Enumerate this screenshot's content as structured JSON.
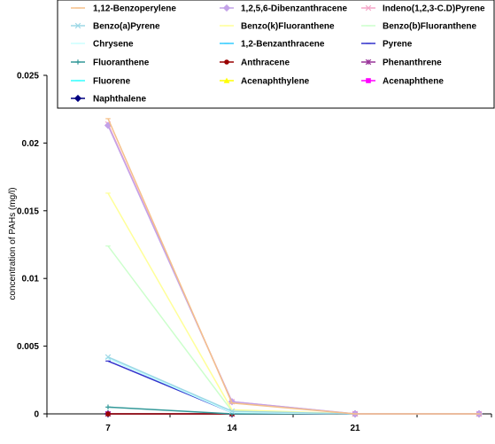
{
  "chart_data": {
    "type": "line",
    "title": "",
    "xlabel": "",
    "ylabel": "concentration of PAHs (mg/l)",
    "x": [
      "7",
      "14",
      "21",
      ""
    ],
    "ylim": [
      0,
      0.025
    ],
    "yticks": [
      "0",
      "0.005",
      "0.01",
      "0.015",
      "0.02",
      "0.025"
    ],
    "grid": false,
    "legend_position": "top",
    "series": [
      {
        "name": "1,12-Benzoperylene",
        "color": "#F5C08A",
        "marker": "line",
        "values": [
          0.0218,
          0.0008,
          0.0,
          0.0
        ]
      },
      {
        "name": "1,2,5,6-Dibenzanthracene",
        "color": "#C3A2E8",
        "marker": "diamond",
        "values": [
          0.0213,
          0.0009,
          0.0,
          0.0
        ]
      },
      {
        "name": "Indeno(1,2,3-C.D)Pyrene",
        "color": "#F4A6C8",
        "marker": "x",
        "values": [
          0.0214,
          0.0009,
          0.0,
          0.0
        ]
      },
      {
        "name": "Benzo(a)Pyrene",
        "color": "#9ED8E6",
        "marker": "x",
        "values": [
          0.0042,
          0.0002,
          0.0,
          0.0
        ]
      },
      {
        "name": "Benzo(k)Fluoranthene",
        "color": "#FFFF99",
        "marker": "line",
        "values": [
          0.0163,
          0.0003,
          0.0,
          0.0
        ]
      },
      {
        "name": "Benzo(b)Fluoranthene",
        "color": "#CCFFCC",
        "marker": "line",
        "values": [
          0.0124,
          0.0002,
          0.0,
          0.0
        ]
      },
      {
        "name": "Chrysene",
        "color": "#CCFFFF",
        "marker": "line",
        "values": [
          0.0041,
          0.0001,
          0.0,
          0.0
        ]
      },
      {
        "name": "1,2-Benzanthracene",
        "color": "#33CCFF",
        "marker": "line",
        "values": [
          0.0041,
          0.0001,
          0.0,
          0.0
        ]
      },
      {
        "name": "Pyrene",
        "color": "#3333CC",
        "marker": "line",
        "values": [
          0.0039,
          0.0001,
          0.0,
          0.0
        ]
      },
      {
        "name": "Fluoranthene",
        "color": "#339999",
        "marker": "plus",
        "values": [
          0.0005,
          0.0,
          0.0,
          0.0
        ]
      },
      {
        "name": "Anthracene",
        "color": "#990000",
        "marker": "circle",
        "values": [
          0.0,
          0.0,
          0.0,
          0.0
        ]
      },
      {
        "name": "Phenanthrene",
        "color": "#993399",
        "marker": "star",
        "values": [
          0.0,
          0.0,
          0.0,
          0.0
        ]
      },
      {
        "name": "Fluorene",
        "color": "#33FFFF",
        "marker": "line",
        "values": [
          0.0,
          0.0,
          0.0,
          0.0
        ]
      },
      {
        "name": "Acenaphthylene",
        "color": "#FFFF00",
        "marker": "triangle",
        "values": [
          0.0,
          0.0,
          0.0,
          0.0
        ]
      },
      {
        "name": "Acenaphthene",
        "color": "#FF00FF",
        "marker": "square",
        "values": [
          0.0,
          0.0,
          0.0,
          0.0
        ]
      },
      {
        "name": "Naphthalene",
        "color": "#000080",
        "marker": "diamond",
        "values": [
          0.0,
          0.0,
          0.0,
          0.0
        ]
      }
    ]
  }
}
